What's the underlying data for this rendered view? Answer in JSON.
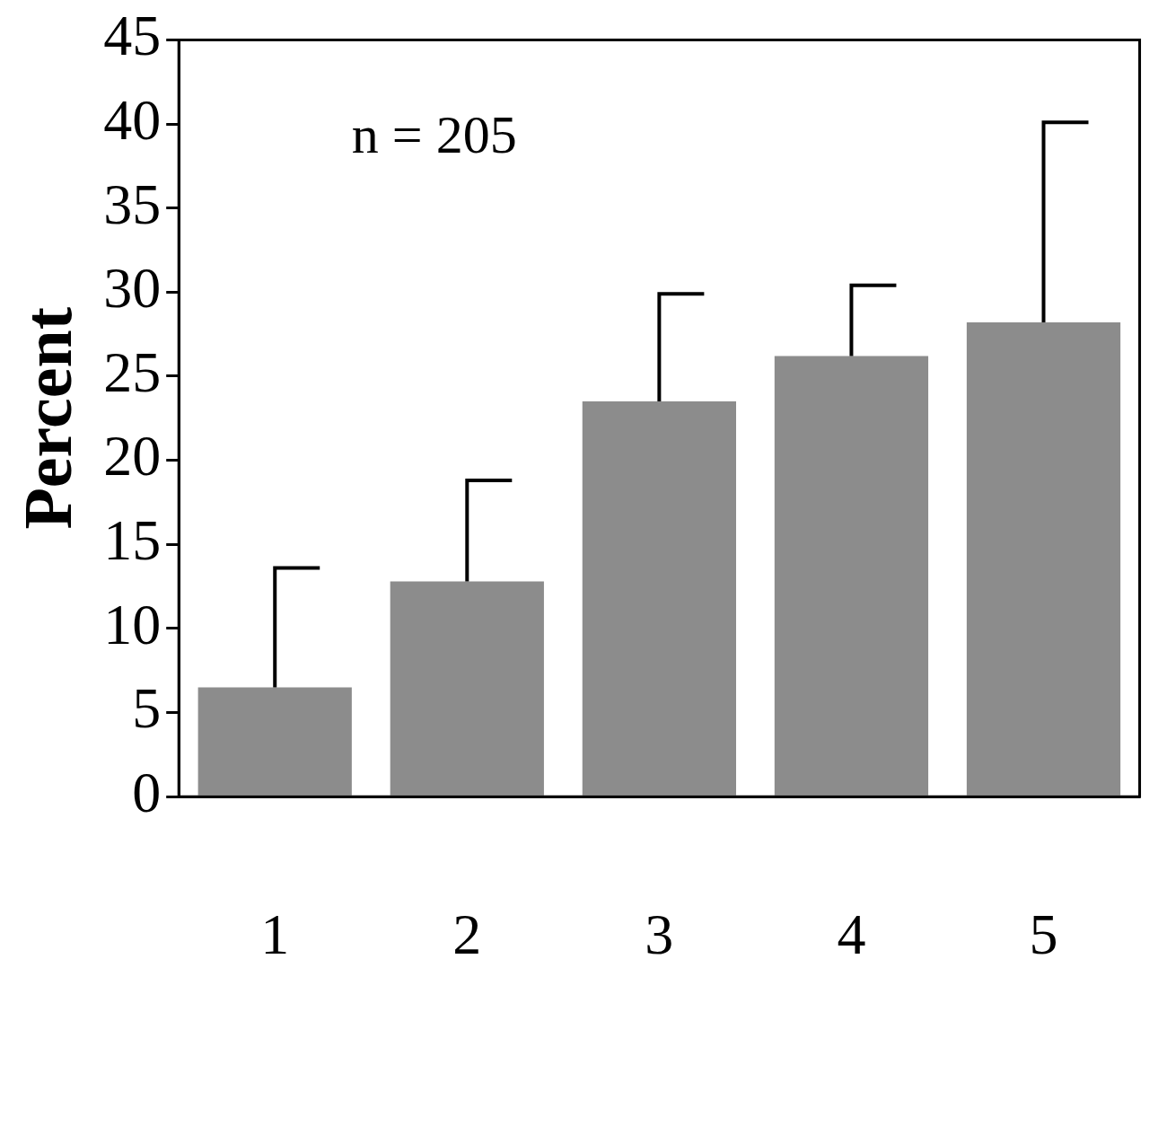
{
  "chart_data": {
    "type": "bar",
    "ylabel": "Percent",
    "categories": [
      "1",
      "2",
      "3",
      "4",
      "5"
    ],
    "values": [
      6.5,
      12.8,
      23.5,
      26.2,
      28.2
    ],
    "errors": [
      [
        6.5,
        13.6
      ],
      [
        12.8,
        18.8
      ],
      [
        23.5,
        29.9
      ],
      [
        26.2,
        30.4
      ],
      [
        28.2,
        40.1
      ]
    ],
    "color": "#8c8c8c",
    "ylim": [
      0,
      45
    ],
    "yticks": [
      0,
      5,
      10,
      15,
      20,
      25,
      30,
      35,
      40,
      45
    ],
    "grid": false,
    "legend": false,
    "annotations": [
      "n = 205"
    ]
  }
}
